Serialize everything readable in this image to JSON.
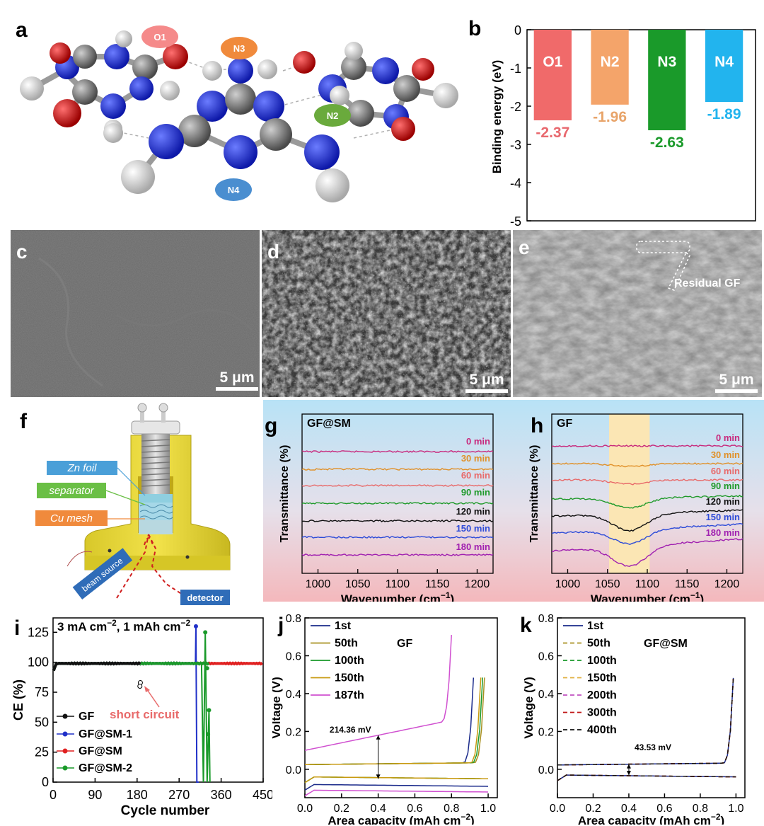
{
  "panel_letters": {
    "a": "a",
    "b": "b",
    "c": "c",
    "d": "d",
    "e": "e",
    "f": "f",
    "g": "g",
    "h": "h",
    "i": "i",
    "j": "j",
    "k": "k"
  },
  "molecule": {
    "labels": [
      {
        "text": "O1",
        "color": "#f27a7a"
      },
      {
        "text": "N3",
        "color": "#f08a3c"
      },
      {
        "text": "N2",
        "color": "#5aaa3c"
      },
      {
        "text": "N4",
        "color": "#4a8ed0"
      }
    ],
    "atom_colors": {
      "N": "#1f2fd6",
      "C": "#7a7a7a",
      "O": "#d81818",
      "H": "#e8e8e8"
    }
  },
  "sem": {
    "scale_bar": "5 μm",
    "annotation_e": "Residual GF"
  },
  "cell_diagram": {
    "labels": {
      "zn_foil": "Zn foil",
      "separator": "separator",
      "cu_mesh": "Cu mesh",
      "beam_source": "beam source",
      "detector": "detector"
    },
    "label_colors": {
      "zn_foil": "#4a9fd8",
      "separator": "#6abf45",
      "cu_mesh": "#f08a3c",
      "beam_source": "#2f6cb8",
      "detector": "#2f6cb8"
    }
  },
  "chart_data": [
    {
      "id": "b",
      "type": "bar",
      "categories": [
        "O1",
        "N2",
        "N3",
        "N4"
      ],
      "values": [
        -2.37,
        -1.96,
        -2.63,
        -1.89
      ],
      "value_labels": [
        "-2.37",
        "-1.96",
        "-2.63",
        "-1.89"
      ],
      "colors": [
        "#f06a6a",
        "#f4a46a",
        "#1a9a2a",
        "#22b4ee"
      ],
      "label_colors": [
        "#e8686e",
        "#e8a46a",
        "#1a9a2a",
        "#22b4ee"
      ],
      "ylabel": "Binding energy (eV)",
      "ylim": [
        -5,
        0
      ],
      "yticks": [
        "0",
        "-1",
        "-2",
        "-3",
        "-4",
        "-5"
      ]
    },
    {
      "id": "g",
      "type": "line",
      "title": "GF@SM",
      "xlabel": "Wavenumber (cm-1)",
      "ylabel": "Transmittance (%)",
      "xlim": [
        980,
        1220
      ],
      "xticks": [
        "1000",
        "1050",
        "1100",
        "1150",
        "1200"
      ],
      "series": [
        {
          "name": "0 min",
          "color": "#c8287c"
        },
        {
          "name": "30 min",
          "color": "#e09028"
        },
        {
          "name": "60 min",
          "color": "#e86a6a"
        },
        {
          "name": "90 min",
          "color": "#1f9a2a"
        },
        {
          "name": "120 min",
          "color": "#111111"
        },
        {
          "name": "150 min",
          "color": "#2e4cd8"
        },
        {
          "name": "180 min",
          "color": "#a020b0"
        }
      ]
    },
    {
      "id": "h",
      "type": "line",
      "title": "GF",
      "xlabel": "Wavenumber (cm-1)",
      "ylabel": "Transmittance (%)",
      "xlim": [
        980,
        1220
      ],
      "xticks": [
        "1000",
        "1050",
        "1100",
        "1150",
        "1200"
      ],
      "highlight_range": [
        1052,
        1103
      ],
      "series": [
        {
          "name": "0 min",
          "color": "#c8287c"
        },
        {
          "name": "30 min",
          "color": "#e09028"
        },
        {
          "name": "60 min",
          "color": "#e86a6a"
        },
        {
          "name": "90 min",
          "color": "#1f9a2a"
        },
        {
          "name": "120 min",
          "color": "#111111"
        },
        {
          "name": "150 min",
          "color": "#2e4cd8"
        },
        {
          "name": "180 min",
          "color": "#a020b0"
        }
      ]
    },
    {
      "id": "i",
      "type": "line",
      "title": "3 mA cm-2, 1 mAh cm-2",
      "xlabel": "Cycle number",
      "ylabel": "CE (%)",
      "xlim": [
        0,
        450
      ],
      "ylim": [
        0,
        137
      ],
      "xticks": [
        "0",
        "90",
        "180",
        "270",
        "360",
        "450"
      ],
      "yticks": [
        "0",
        "25",
        "50",
        "75",
        "100",
        "125"
      ],
      "annotation": "short circuit",
      "series": [
        {
          "name": "GF",
          "color": "#111111",
          "end_cycle": 187
        },
        {
          "name": "GF@SM-1",
          "color": "#2030c8",
          "end_cycle": 310
        },
        {
          "name": "GF@SM",
          "color": "#e02020",
          "end_cycle": 450
        },
        {
          "name": "GF@SM-2",
          "color": "#1a9a2a",
          "end_cycle": 335
        }
      ]
    },
    {
      "id": "j",
      "type": "line",
      "title": "GF",
      "xlabel": "Area capacity (mAh cm-2)",
      "ylabel": "Voltage (V)",
      "xlim": [
        0,
        1.05
      ],
      "ylim": [
        -0.15,
        0.8
      ],
      "xticks": [
        "0.0",
        "0.2",
        "0.4",
        "0.6",
        "0.8",
        "1.0"
      ],
      "yticks": [
        "0.0",
        "0.2",
        "0.4",
        "0.6",
        "0.8"
      ],
      "annotation": "214.36 mV",
      "series": [
        {
          "name": "1st",
          "color": "#1a2a8a",
          "end_capacity": 0.92
        },
        {
          "name": "50th",
          "color": "#a89020",
          "end_capacity": 0.98
        },
        {
          "name": "100th",
          "color": "#1a9a2a",
          "end_capacity": 0.97
        },
        {
          "name": "150th",
          "color": "#c89a10",
          "end_capacity": 0.96
        },
        {
          "name": "187th",
          "color": "#d050d0",
          "end_capacity": 0.8
        }
      ]
    },
    {
      "id": "k",
      "type": "line",
      "title": "GF@SM",
      "xlabel": "Area capacity (mAh cm-2)",
      "ylabel": "Voltage (V)",
      "xlim": [
        0,
        1.05
      ],
      "ylim": [
        -0.15,
        0.8
      ],
      "xticks": [
        "0.0",
        "0.2",
        "0.4",
        "0.6",
        "0.8",
        "1.0"
      ],
      "yticks": [
        "0.0",
        "0.2",
        "0.4",
        "0.6",
        "0.8"
      ],
      "annotation": "43.53 mV",
      "series": [
        {
          "name": "1st",
          "color": "#1a2a8a"
        },
        {
          "name": "50th",
          "color": "#a89020"
        },
        {
          "name": "100th",
          "color": "#1a9a2a"
        },
        {
          "name": "150th",
          "color": "#e0b040"
        },
        {
          "name": "200th",
          "color": "#c050c0"
        },
        {
          "name": "300th",
          "color": "#c01818"
        },
        {
          "name": "400th",
          "color": "#111111"
        }
      ]
    }
  ]
}
